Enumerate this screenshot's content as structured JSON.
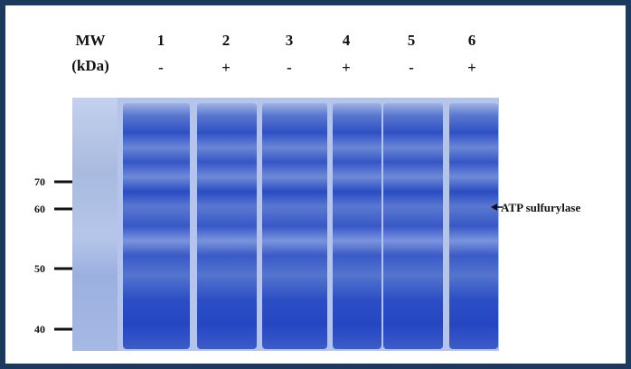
{
  "header": {
    "mw": "MW",
    "unit": "(kDa)"
  },
  "lanes": [
    {
      "number": "1",
      "sign": "-"
    },
    {
      "number": "2",
      "sign": "+"
    },
    {
      "number": "3",
      "sign": "-"
    },
    {
      "number": "4",
      "sign": "+"
    },
    {
      "number": "5",
      "sign": "-"
    },
    {
      "number": "6",
      "sign": "+"
    }
  ],
  "markers": [
    "70",
    "60",
    "50",
    "40"
  ],
  "annotation": "ATP sulfurylase"
}
